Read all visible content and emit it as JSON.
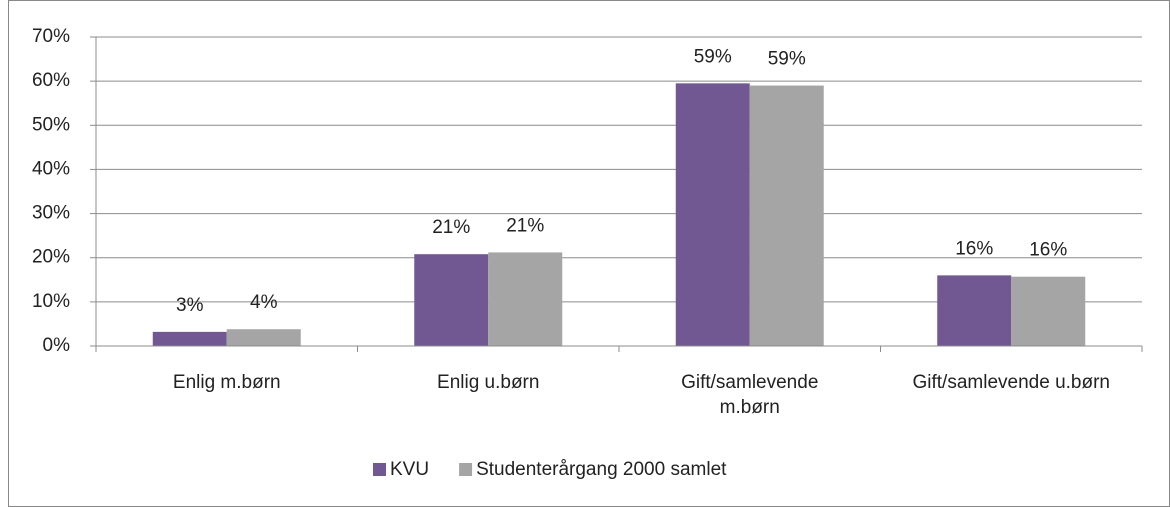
{
  "chart_data": {
    "type": "bar",
    "categories": [
      "Enlig m.børn",
      "Enlig u.børn",
      "Gift/samlevende\nm.børn",
      "Gift/samlevende u.børn"
    ],
    "series": [
      {
        "name": "KVU",
        "color": "#725893",
        "values": [
          3.2,
          20.8,
          59.5,
          16.0
        ],
        "value_labels": [
          "3%",
          "21%",
          "59%",
          "16%"
        ]
      },
      {
        "name": "Studenterårgang 2000 samlet",
        "color": "#a5a5a5",
        "values": [
          3.8,
          21.2,
          59.0,
          15.7
        ],
        "value_labels": [
          "4%",
          "21%",
          "59%",
          "16%"
        ]
      }
    ],
    "ylim": [
      0,
      70
    ],
    "yticks": [
      {
        "value": 0,
        "label": "0%"
      },
      {
        "value": 10,
        "label": "10%"
      },
      {
        "value": 20,
        "label": "20%"
      },
      {
        "value": 30,
        "label": "30%"
      },
      {
        "value": 40,
        "label": "40%"
      },
      {
        "value": 50,
        "label": "50%"
      },
      {
        "value": 60,
        "label": "60%"
      },
      {
        "value": 70,
        "label": "70%"
      }
    ],
    "grid": true,
    "legend": "bottom"
  }
}
